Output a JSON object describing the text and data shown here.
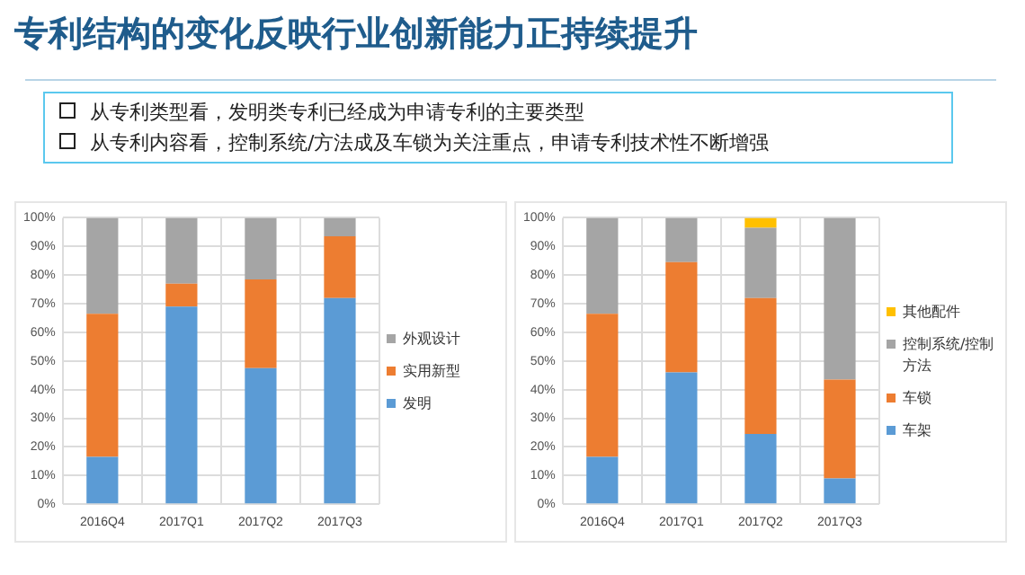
{
  "chart_data": [
    {
      "type": "bar",
      "title": "专利结构的变化反映行业创新能力正持续提升",
      "annotations": [
        "从专利类型看，发明类专利已经成为申请专利的主要类型",
        "从专利内容看，控制系统/方法成及车锁为关注重点，申请专利技术性不断增强"
      ],
      "stacked": true,
      "categories": [
        "2016Q4",
        "2017Q1",
        "2017Q2",
        "2017Q3"
      ],
      "series": [
        {
          "name": "发明",
          "color": "#5b9bd5",
          "values": [
            16.5,
            69,
            47.5,
            72
          ]
        },
        {
          "name": "实用新型",
          "color": "#ed7d31",
          "values": [
            50,
            8,
            31,
            21.5
          ]
        },
        {
          "name": "外观设计",
          "color": "#a5a5a5",
          "values": [
            33.5,
            23,
            21.5,
            6.5
          ]
        }
      ],
      "ylim": [
        0,
        100
      ],
      "yticks": [
        {
          "value": 0,
          "label": "0%"
        },
        {
          "value": 10,
          "label": "10%"
        },
        {
          "value": 20,
          "label": "20%"
        },
        {
          "value": 30,
          "label": "30%"
        },
        {
          "value": 40,
          "label": "40%"
        },
        {
          "value": 50,
          "label": "50%"
        },
        {
          "value": 60,
          "label": "60%"
        },
        {
          "value": 70,
          "label": "70%"
        },
        {
          "value": 80,
          "label": "80%"
        },
        {
          "value": 90,
          "label": "90%"
        },
        {
          "value": 100,
          "label": "100%"
        }
      ],
      "grid": true,
      "legend": "right"
    },
    {
      "type": "bar",
      "stacked": true,
      "categories": [
        "2016Q4",
        "2017Q1",
        "2017Q2",
        "2017Q3"
      ],
      "series": [
        {
          "name": "车架",
          "color": "#5b9bd5",
          "values": [
            16.5,
            46,
            24.5,
            9
          ]
        },
        {
          "name": "车锁",
          "color": "#ed7d31",
          "values": [
            50,
            38.5,
            47.5,
            34.5
          ]
        },
        {
          "name": "控制系统/控制方法",
          "color": "#a5a5a5",
          "values": [
            33.5,
            15.5,
            24.5,
            56.5
          ]
        },
        {
          "name": "其他配件",
          "color": "#ffc000",
          "values": [
            0,
            0,
            3.5,
            0
          ]
        }
      ],
      "ylim": [
        0,
        100
      ],
      "yticks": [
        {
          "value": 0,
          "label": "0%"
        },
        {
          "value": 10,
          "label": "10%"
        },
        {
          "value": 20,
          "label": "20%"
        },
        {
          "value": 30,
          "label": "30%"
        },
        {
          "value": 40,
          "label": "40%"
        },
        {
          "value": 50,
          "label": "50%"
        },
        {
          "value": 60,
          "label": "60%"
        },
        {
          "value": 70,
          "label": "70%"
        },
        {
          "value": 80,
          "label": "80%"
        },
        {
          "value": 90,
          "label": "90%"
        },
        {
          "value": 100,
          "label": "100%"
        }
      ],
      "grid": true,
      "legend": "right"
    }
  ]
}
